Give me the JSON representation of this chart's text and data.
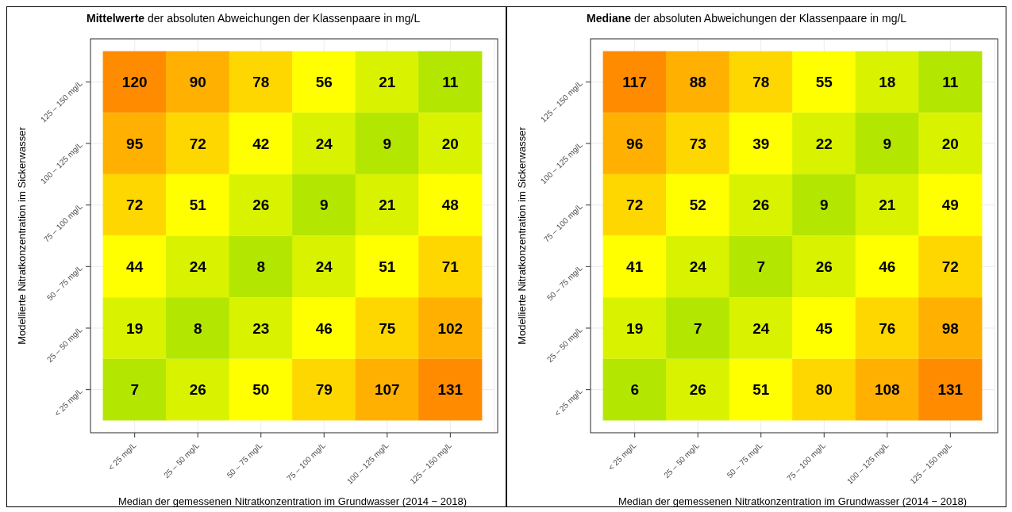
{
  "chart_data": [
    {
      "type": "heatmap",
      "title": "Mittelwerte der absoluten Abweichungen der Klassenpaare in mg/L",
      "xlabel": "Median der gemessenen Nitratkonzentration im Grundwasser (2014 − 2018)",
      "ylabel": "Modellierte Nitratkonzentration im Sickerwasser",
      "categories": [
        "< 25 mg/L",
        "25 – 50 mg/L",
        "50 – 75 mg/L",
        "75 – 100 mg/L",
        "100 – 125 mg/L",
        "125 – 150 mg/L"
      ],
      "y_categories": [
        "125 – 150 mg/L",
        "100 – 125 mg/L",
        "75 – 100 mg/L",
        "50 – 75 mg/L",
        "25 – 50 mg/L",
        "< 25 mg/L"
      ],
      "grid": true,
      "data_labels": true,
      "cells": [
        [
          120,
          90,
          78,
          56,
          21,
          11
        ],
        [
          95,
          72,
          42,
          24,
          9,
          20
        ],
        [
          72,
          51,
          26,
          9,
          21,
          48
        ],
        [
          44,
          24,
          8,
          24,
          51,
          71
        ],
        [
          19,
          8,
          23,
          46,
          75,
          102
        ],
        [
          7,
          26,
          50,
          79,
          107,
          131
        ]
      ],
      "colors": [
        [
          "#ff8c00",
          "#ffb000",
          "#ffd700",
          "#ffff00",
          "#d9f200",
          "#b3e600"
        ],
        [
          "#ffb000",
          "#ffd700",
          "#ffff00",
          "#d9f200",
          "#b3e600",
          "#d9f200"
        ],
        [
          "#ffd700",
          "#ffff00",
          "#d9f200",
          "#b3e600",
          "#d9f200",
          "#ffff00"
        ],
        [
          "#ffff00",
          "#d9f200",
          "#b3e600",
          "#d9f200",
          "#ffff00",
          "#ffd700"
        ],
        [
          "#d9f200",
          "#b3e600",
          "#d9f200",
          "#ffff00",
          "#ffd700",
          "#ffb000"
        ],
        [
          "#b3e600",
          "#d9f200",
          "#ffff00",
          "#ffd700",
          "#ffb000",
          "#ff8c00"
        ]
      ]
    },
    {
      "type": "heatmap",
      "title": "Mediane der absoluten Abweichungen der Klassenpaare in mg/L",
      "xlabel": "Median der gemessenen Nitratkonzentration im Grundwasser (2014 − 2018)",
      "ylabel": "Modellierte Nitratkonzentration im Sickerwasser",
      "categories": [
        "< 25 mg/L",
        "25 – 50 mg/L",
        "50 – 75 mg/L",
        "75 – 100 mg/L",
        "100 – 125 mg/L",
        "125 – 150 mg/L"
      ],
      "y_categories": [
        "125 – 150 mg/L",
        "100 – 125 mg/L",
        "75 – 100 mg/L",
        "50 – 75 mg/L",
        "25 – 50 mg/L",
        "< 25 mg/L"
      ],
      "grid": true,
      "data_labels": true,
      "cells": [
        [
          117,
          88,
          78,
          55,
          18,
          11
        ],
        [
          96,
          73,
          39,
          22,
          9,
          20
        ],
        [
          72,
          52,
          26,
          9,
          21,
          49
        ],
        [
          41,
          24,
          7,
          26,
          46,
          72
        ],
        [
          19,
          7,
          24,
          45,
          76,
          98
        ],
        [
          6,
          26,
          51,
          80,
          108,
          131
        ]
      ],
      "colors": [
        [
          "#ff8c00",
          "#ffb000",
          "#ffd700",
          "#ffff00",
          "#d9f200",
          "#b3e600"
        ],
        [
          "#ffb000",
          "#ffd700",
          "#ffff00",
          "#d9f200",
          "#b3e600",
          "#d9f200"
        ],
        [
          "#ffd700",
          "#ffff00",
          "#d9f200",
          "#b3e600",
          "#d9f200",
          "#ffff00"
        ],
        [
          "#ffff00",
          "#d9f200",
          "#b3e600",
          "#d9f200",
          "#ffff00",
          "#ffd700"
        ],
        [
          "#d9f200",
          "#b3e600",
          "#d9f200",
          "#ffff00",
          "#ffd700",
          "#ffb000"
        ],
        [
          "#b3e600",
          "#d9f200",
          "#ffff00",
          "#ffd700",
          "#ffb000",
          "#ff8c00"
        ]
      ]
    }
  ]
}
